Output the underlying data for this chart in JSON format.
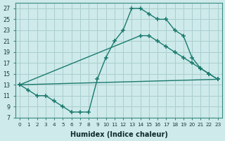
{
  "bg_color": "#ceeaea",
  "grid_color": "#aacece",
  "line_color": "#1a7a6e",
  "xlim": [
    -0.5,
    23.5
  ],
  "ylim": [
    7,
    28
  ],
  "yticks": [
    7,
    9,
    11,
    13,
    15,
    17,
    19,
    21,
    23,
    25,
    27
  ],
  "xticks": [
    0,
    1,
    2,
    3,
    4,
    5,
    6,
    7,
    8,
    9,
    10,
    11,
    12,
    13,
    14,
    15,
    16,
    17,
    18,
    19,
    20,
    21,
    22,
    23
  ],
  "xlabel": "Humidex (Indice chaleur)",
  "line1_x": [
    0,
    1,
    2,
    3,
    4,
    5,
    6,
    7,
    8,
    9,
    10,
    11,
    12,
    13,
    14,
    15,
    16,
    17,
    18,
    19,
    20,
    21,
    22,
    23
  ],
  "line1_y": [
    13,
    12,
    11,
    11,
    10,
    9,
    8,
    8,
    8,
    14,
    18,
    21,
    23,
    27,
    27,
    26,
    25,
    25,
    23,
    22,
    18,
    16,
    15,
    14
  ],
  "line2_x": [
    0,
    14,
    15,
    16,
    17,
    18,
    19,
    20,
    21,
    22,
    23
  ],
  "line2_y": [
    13,
    22,
    22,
    21,
    20,
    19,
    18,
    17,
    16,
    15,
    14
  ],
  "line3_x": [
    0,
    23
  ],
  "line3_y": [
    13,
    14
  ]
}
